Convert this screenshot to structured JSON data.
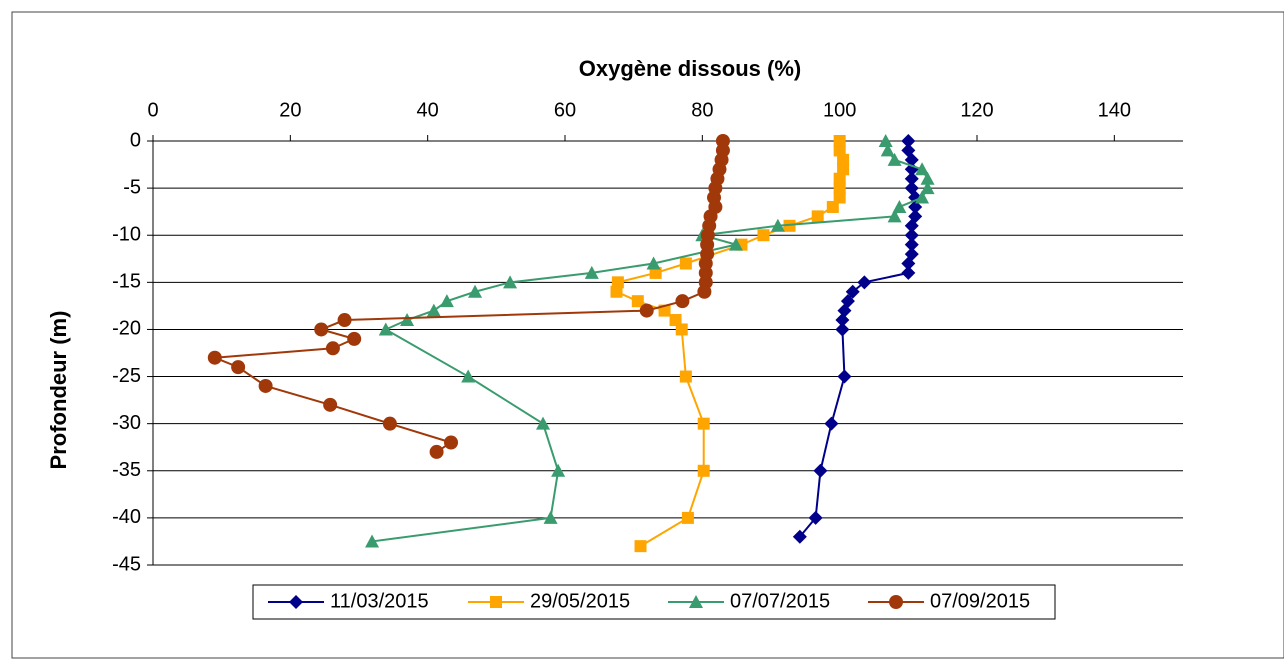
{
  "chart_data": {
    "type": "line",
    "title": "Oxygène dissous (%)",
    "y_label": "Profondeur (m)",
    "xlim": [
      0,
      150
    ],
    "xticks": [
      0,
      20,
      40,
      60,
      80,
      100,
      120,
      140
    ],
    "ylim": [
      -45,
      0
    ],
    "yticks": [
      0,
      -5,
      -10,
      -15,
      -20,
      -25,
      -30,
      -35,
      -40,
      -45
    ],
    "grid": true,
    "legend": "bottom",
    "series": [
      {
        "name": "11/03/2015",
        "color": "#00008b",
        "marker": "diamond",
        "x": [
          110,
          110,
          110.5,
          110.5,
          110.5,
          110.5,
          111,
          111,
          111,
          110.5,
          110.5,
          110.5,
          110.5,
          110,
          110,
          103.6,
          101.9,
          101.2,
          100.7,
          100.4,
          100.4,
          100.7,
          98.8,
          97.2,
          96.5,
          94.2
        ],
        "values": [
          0,
          -1,
          -2,
          -3,
          -4,
          -5,
          -6,
          -7,
          -8,
          -9,
          -10,
          -11,
          -12,
          -13,
          -14,
          -15,
          -16,
          -17,
          -18,
          -19,
          -20,
          -25,
          -30,
          -35,
          -40,
          -42
        ]
      },
      {
        "name": "29/05/2015",
        "color": "#ffa500",
        "marker": "square",
        "x": [
          100,
          100,
          100.5,
          100.5,
          100,
          100,
          100,
          99,
          96.8,
          92.7,
          88.9,
          85.7,
          77.6,
          73.2,
          67.7,
          67.5,
          70.6,
          74.5,
          76.1,
          77,
          77.6,
          80.2,
          80.2,
          77.9,
          71
        ],
        "values": [
          0,
          -1,
          -2,
          -3,
          -4,
          -5,
          -6,
          -7,
          -8,
          -9,
          -10,
          -11,
          -13,
          -14,
          -15,
          -16,
          -17,
          -18,
          -19,
          -20,
          -25,
          -30,
          -35,
          -40,
          -43
        ]
      },
      {
        "name": "07/07/2015",
        "color": "#3a9c6e",
        "marker": "triangle",
        "x": [
          106.7,
          107,
          108,
          112,
          112.8,
          112.8,
          112,
          108.7,
          108,
          91,
          80,
          84.9,
          72.9,
          63.9,
          52,
          46.9,
          42.8,
          40.9,
          37,
          33.9,
          45.9,
          56.8,
          59,
          57.9,
          31.9
        ],
        "values": [
          0,
          -1,
          -2,
          -3,
          -4,
          -5,
          -6,
          -7,
          -8,
          -9,
          -10,
          -11,
          -13,
          -14,
          -15,
          -16,
          -17,
          -18,
          -19,
          -20,
          -25,
          -30,
          -35,
          -40,
          -42.5
        ]
      },
      {
        "name": "07/09/2015",
        "color": "#a0380a",
        "marker": "circle",
        "x": [
          83,
          83,
          82.8,
          82.5,
          82.2,
          81.9,
          81.7,
          81.9,
          81.2,
          81,
          80.8,
          80.7,
          80.7,
          80.5,
          80.5,
          80.5,
          80.3,
          77.1,
          71.9,
          27.9,
          24.5,
          29.3,
          26.2,
          9,
          12.4,
          16.4,
          25.8,
          34.5,
          43.4,
          41.3
        ],
        "values": [
          0,
          -1,
          -2,
          -3,
          -4,
          -5,
          -6,
          -7,
          -8,
          -9,
          -10,
          -11,
          -12,
          -13,
          -14,
          -15,
          -16,
          -17,
          -18,
          -19,
          -20,
          -21,
          -22,
          -23,
          -24,
          -26,
          -28,
          -30,
          -32,
          -33
        ]
      }
    ]
  }
}
